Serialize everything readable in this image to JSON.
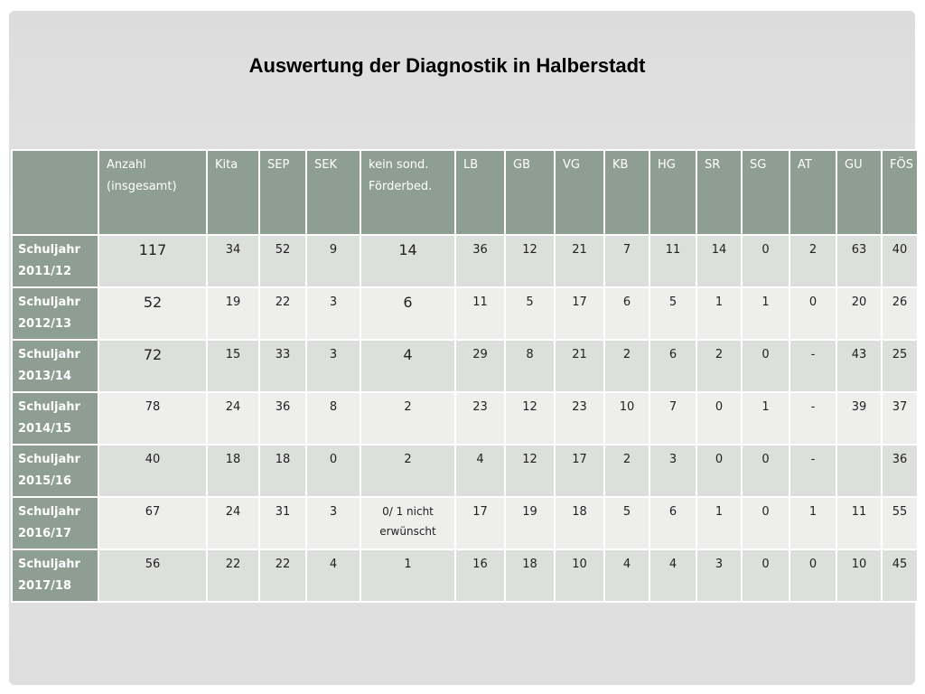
{
  "title": "Auswertung der Diagnostik in Halberstadt",
  "table": {
    "header": [
      "Anzahl (insgesamt)",
      "Kita",
      "SEP",
      "SEK",
      "kein sond. Förderbed.",
      "LB",
      "GB",
      "VG",
      "KB",
      "HG",
      "SR",
      "SG",
      "AT",
      "GU",
      "FÖS"
    ],
    "rows": [
      {
        "label": "Schuljahr 2011/12",
        "cells": [
          117,
          34,
          52,
          9,
          14,
          36,
          12,
          21,
          7,
          11,
          14,
          0,
          2,
          63,
          40
        ]
      },
      {
        "label": "Schuljahr 2012/13",
        "cells": [
          52,
          19,
          22,
          3,
          6,
          11,
          5,
          17,
          6,
          5,
          1,
          1,
          0,
          20,
          26
        ]
      },
      {
        "label": "Schuljahr 2013/14",
        "cells": [
          72,
          15,
          33,
          3,
          4,
          29,
          8,
          21,
          2,
          6,
          2,
          0,
          "-",
          43,
          25
        ]
      },
      {
        "label": "Schuljahr 2014/15",
        "cells": [
          78,
          24,
          36,
          8,
          2,
          23,
          12,
          23,
          10,
          7,
          0,
          1,
          "-",
          39,
          37
        ]
      },
      {
        "label": "Schuljahr 2015/16",
        "cells": [
          40,
          18,
          18,
          0,
          2,
          4,
          12,
          17,
          2,
          3,
          0,
          0,
          "-",
          null,
          36
        ]
      },
      {
        "label": "Schuljahr 2016/17",
        "cells": [
          67,
          24,
          31,
          3,
          "0/ 1 nicht erwünscht",
          17,
          19,
          18,
          5,
          6,
          1,
          0,
          1,
          11,
          55
        ]
      },
      {
        "label": "Schuljahr 2017/18",
        "cells": [
          56,
          22,
          22,
          4,
          1,
          16,
          18,
          10,
          4,
          4,
          3,
          0,
          0,
          10,
          45
        ]
      }
    ]
  }
}
